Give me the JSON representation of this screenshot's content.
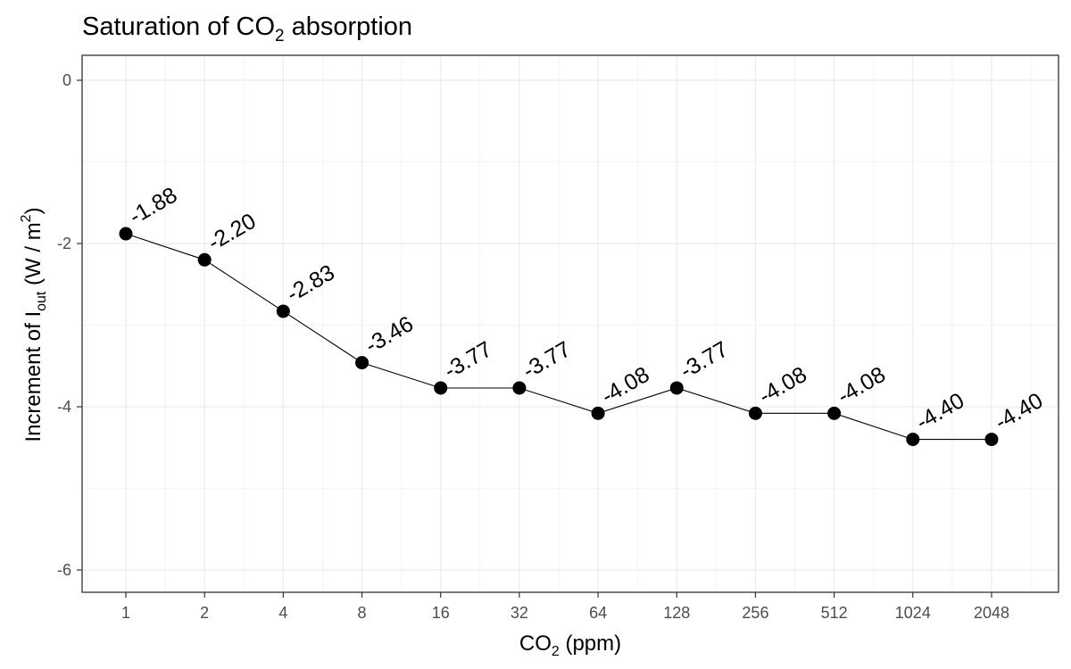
{
  "chart_data": {
    "type": "line",
    "title": {
      "main": "Saturation of CO",
      "sub": "2",
      "rest": " absorption"
    },
    "xlabel": {
      "main": "CO",
      "sub": "2",
      "rest": " (ppm)"
    },
    "ylabel": {
      "main": "Increment of  I",
      "sub": "out",
      "rest_before_sup": " (W / m",
      "sup": "2",
      "close": ")"
    },
    "x_scale": "log2",
    "x": [
      1,
      2,
      4,
      8,
      16,
      32,
      64,
      128,
      256,
      512,
      1024,
      2048
    ],
    "x_tick_labels": [
      "1",
      "2",
      "4",
      "8",
      "16",
      "32",
      "64",
      "128",
      "256",
      "512",
      "1024",
      "2048"
    ],
    "y": [
      -1.88,
      -2.2,
      -2.83,
      -3.46,
      -3.77,
      -3.77,
      -4.08,
      -3.77,
      -4.08,
      -4.08,
      -4.4,
      -4.4
    ],
    "data_labels": [
      "-1.88",
      "-2.20",
      "-2.83",
      "-3.46",
      "-3.77",
      "-3.77",
      "-4.08",
      "-3.77",
      "-4.08",
      "-4.08",
      "-4.40",
      "-4.40"
    ],
    "y_ticks": [
      0,
      -2,
      -4,
      -6
    ],
    "y_tick_labels": [
      "0",
      "-2",
      "-4",
      "-6"
    ],
    "ylim": [
      -6.3,
      0.3
    ],
    "grid": true,
    "legend": "none",
    "colors": {
      "points": "#000000",
      "line": "#000000",
      "grid": "#ebebeb",
      "panel_border": "#333333",
      "tick_text": "#4d4d4d"
    }
  }
}
